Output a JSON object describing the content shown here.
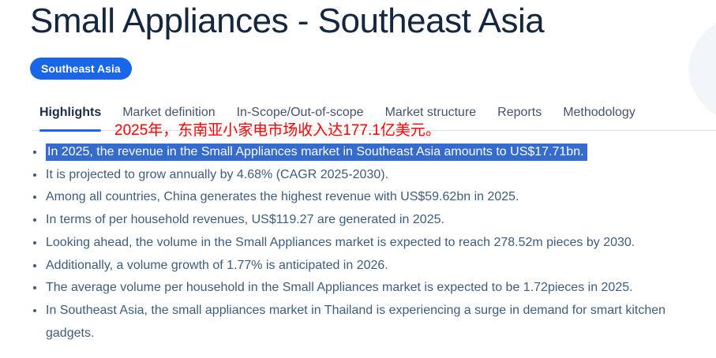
{
  "header": {
    "title": "Small Appliances - Southeast Asia",
    "region_badge": "Southeast Asia"
  },
  "tabs": [
    {
      "label": "Highlights",
      "active": true
    },
    {
      "label": "Market definition",
      "active": false
    },
    {
      "label": "In-Scope/Out-of-scope",
      "active": false
    },
    {
      "label": "Market structure",
      "active": false
    },
    {
      "label": "Reports",
      "active": false
    },
    {
      "label": "Methodology",
      "active": false
    }
  ],
  "annotation": {
    "text": "2025年，东南亚小家电市场收入达177.1亿美元。",
    "color": "#ff0000"
  },
  "highlights": {
    "bullets": [
      {
        "text": "In 2025, the revenue in the Small Appliances market in Southeast Asia amounts to US$17.71bn.",
        "selected": true
      },
      {
        "text": "It is projected to grow annually by 4.68% (CAGR 2025-2030).",
        "selected": false
      },
      {
        "text": "Among all countries, China generates the highest revenue with US$59.62bn in 2025.",
        "selected": false
      },
      {
        "text": "In terms of per household revenues, US$119.27 are generated in 2025.",
        "selected": false
      },
      {
        "text": "Looking ahead, the volume in the Small Appliances market is expected to reach 278.52m pieces by 2030.",
        "selected": false
      },
      {
        "text": "Additionally, a volume growth of 1.77% is anticipated in 2026.",
        "selected": false
      },
      {
        "text": "The average volume per household in the Small Appliances market is expected to be 1.72pieces in 2025.",
        "selected": false
      },
      {
        "text": "In Southeast Asia, the small appliances market in Thailand is experiencing a surge in demand for smart kitchen gadgets.",
        "selected": false
      }
    ]
  },
  "colors": {
    "badge_blue": "#1a66e8",
    "tab_underline_blue": "#1a66e8",
    "selection_blue": "#356bcc",
    "body_text_slate": "#3d5c7e",
    "title_navy": "#15263f",
    "tab_inactive": "#44546d",
    "tab_active": "#1d2d49",
    "annotation_red": "#ff0000",
    "divider_gray": "#dcdfe3",
    "decorative_blob": "#f2f6fa"
  }
}
